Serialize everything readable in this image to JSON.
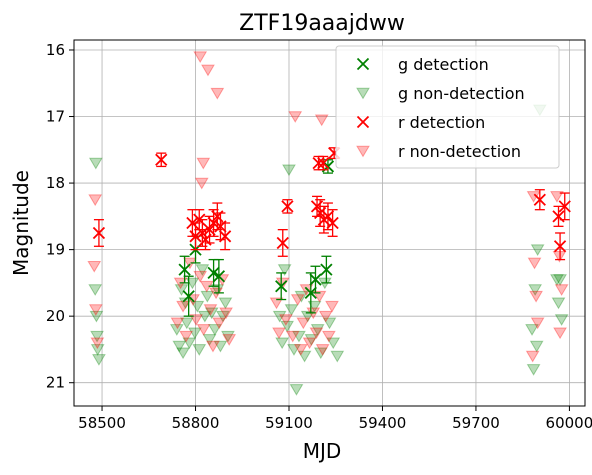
{
  "chart_data": {
    "type": "scatter",
    "title": "ZTF19aaajdww",
    "xlabel": "MJD",
    "ylabel": "Magnitude",
    "xlim": [
      58410,
      60050
    ],
    "ylim": [
      21.35,
      15.85
    ],
    "y_inverted": true,
    "grid": true,
    "legend_position": "top-right",
    "xticks": [
      58500,
      58800,
      59100,
      59400,
      59700,
      60000
    ],
    "yticks": [
      16,
      17,
      18,
      19,
      20,
      21
    ],
    "colors": {
      "g": "#008000",
      "r": "#ff0000"
    },
    "series": [
      {
        "name": "g detection",
        "marker": "x",
        "color": "#008000",
        "points": [
          {
            "x": 58765,
            "y": 19.3,
            "err": 0.2
          },
          {
            "x": 58778,
            "y": 19.7,
            "err": 0.3
          },
          {
            "x": 58800,
            "y": 19.0,
            "err": 0.2
          },
          {
            "x": 58858,
            "y": 19.35,
            "err": 0.2
          },
          {
            "x": 58875,
            "y": 19.4,
            "err": 0.25
          },
          {
            "x": 59075,
            "y": 19.55,
            "err": 0.2
          },
          {
            "x": 59170,
            "y": 19.65,
            "err": 0.3
          },
          {
            "x": 59185,
            "y": 19.45,
            "err": 0.2
          },
          {
            "x": 59220,
            "y": 19.3,
            "err": 0.2
          },
          {
            "x": 59225,
            "y": 17.75,
            "err": 0.1
          }
        ]
      },
      {
        "name": "g non-detection",
        "marker": "triangle-down",
        "color": "#008000",
        "points": [
          {
            "x": 58480,
            "y": 17.7
          },
          {
            "x": 58478,
            "y": 19.6
          },
          {
            "x": 58482,
            "y": 20.0
          },
          {
            "x": 58484,
            "y": 20.3
          },
          {
            "x": 58486,
            "y": 20.5
          },
          {
            "x": 58490,
            "y": 20.65
          },
          {
            "x": 58740,
            "y": 20.2
          },
          {
            "x": 58748,
            "y": 20.45
          },
          {
            "x": 58755,
            "y": 19.6
          },
          {
            "x": 58760,
            "y": 20.55
          },
          {
            "x": 58768,
            "y": 19.8
          },
          {
            "x": 58772,
            "y": 20.1
          },
          {
            "x": 58780,
            "y": 20.4
          },
          {
            "x": 58790,
            "y": 19.5
          },
          {
            "x": 58798,
            "y": 20.25
          },
          {
            "x": 58806,
            "y": 19.85
          },
          {
            "x": 58812,
            "y": 20.5
          },
          {
            "x": 58822,
            "y": 19.3
          },
          {
            "x": 58830,
            "y": 20.0
          },
          {
            "x": 58838,
            "y": 19.7
          },
          {
            "x": 58845,
            "y": 20.35
          },
          {
            "x": 58852,
            "y": 19.95
          },
          {
            "x": 58862,
            "y": 20.2
          },
          {
            "x": 58870,
            "y": 19.6
          },
          {
            "x": 58880,
            "y": 20.45
          },
          {
            "x": 58888,
            "y": 20.0
          },
          {
            "x": 58896,
            "y": 19.8
          },
          {
            "x": 58904,
            "y": 20.3
          },
          {
            "x": 59070,
            "y": 20.0
          },
          {
            "x": 59078,
            "y": 20.4
          },
          {
            "x": 59086,
            "y": 19.3
          },
          {
            "x": 59094,
            "y": 20.15
          },
          {
            "x": 59100,
            "y": 17.8
          },
          {
            "x": 59108,
            "y": 19.9
          },
          {
            "x": 59116,
            "y": 20.5
          },
          {
            "x": 59124,
            "y": 21.1
          },
          {
            "x": 59132,
            "y": 20.3
          },
          {
            "x": 59140,
            "y": 19.7
          },
          {
            "x": 59150,
            "y": 20.6
          },
          {
            "x": 59160,
            "y": 20.0
          },
          {
            "x": 59172,
            "y": 20.35
          },
          {
            "x": 59182,
            "y": 19.85
          },
          {
            "x": 59192,
            "y": 20.2
          },
          {
            "x": 59202,
            "y": 20.55
          },
          {
            "x": 59215,
            "y": 19.5
          },
          {
            "x": 59230,
            "y": 20.1
          },
          {
            "x": 59242,
            "y": 20.4
          },
          {
            "x": 59255,
            "y": 20.6
          },
          {
            "x": 59880,
            "y": 20.2
          },
          {
            "x": 59885,
            "y": 20.8
          },
          {
            "x": 59890,
            "y": 19.6
          },
          {
            "x": 59895,
            "y": 20.45
          },
          {
            "x": 59898,
            "y": 19.0
          },
          {
            "x": 59905,
            "y": 16.9
          },
          {
            "x": 59960,
            "y": 19.45
          },
          {
            "x": 59965,
            "y": 19.8
          },
          {
            "x": 59970,
            "y": 19.45
          },
          {
            "x": 59975,
            "y": 20.05
          }
        ]
      },
      {
        "name": "r detection",
        "marker": "x",
        "color": "#ff0000",
        "points": [
          {
            "x": 58490,
            "y": 18.75,
            "err": 0.2
          },
          {
            "x": 58690,
            "y": 17.65,
            "err": 0.1
          },
          {
            "x": 58790,
            "y": 18.6,
            "err": 0.2
          },
          {
            "x": 58800,
            "y": 18.8,
            "err": 0.2
          },
          {
            "x": 58812,
            "y": 18.55,
            "err": 0.15
          },
          {
            "x": 58822,
            "y": 18.75,
            "err": 0.2
          },
          {
            "x": 58832,
            "y": 18.85,
            "err": 0.15
          },
          {
            "x": 58845,
            "y": 18.7,
            "err": 0.2
          },
          {
            "x": 58858,
            "y": 18.6,
            "err": 0.2
          },
          {
            "x": 58870,
            "y": 18.5,
            "err": 0.2
          },
          {
            "x": 58880,
            "y": 18.65,
            "err": 0.2
          },
          {
            "x": 58895,
            "y": 18.8,
            "err": 0.2
          },
          {
            "x": 59080,
            "y": 18.9,
            "err": 0.2
          },
          {
            "x": 59095,
            "y": 18.35,
            "err": 0.1
          },
          {
            "x": 59190,
            "y": 18.35,
            "err": 0.15
          },
          {
            "x": 59200,
            "y": 18.45,
            "err": 0.2
          },
          {
            "x": 59212,
            "y": 18.55,
            "err": 0.2
          },
          {
            "x": 59225,
            "y": 18.5,
            "err": 0.2
          },
          {
            "x": 59240,
            "y": 18.6,
            "err": 0.2
          },
          {
            "x": 59195,
            "y": 17.7,
            "err": 0.1
          },
          {
            "x": 59210,
            "y": 17.7,
            "err": 0.1
          },
          {
            "x": 59245,
            "y": 17.55,
            "err": 0.08
          },
          {
            "x": 59905,
            "y": 18.25,
            "err": 0.15
          },
          {
            "x": 59965,
            "y": 18.5,
            "err": 0.15
          },
          {
            "x": 59970,
            "y": 18.95,
            "err": 0.2
          },
          {
            "x": 59985,
            "y": 18.35,
            "err": 0.2
          }
        ]
      },
      {
        "name": "r non-detection",
        "marker": "triangle-down",
        "color": "#ff0000",
        "points": [
          {
            "x": 58478,
            "y": 18.25
          },
          {
            "x": 58475,
            "y": 19.25
          },
          {
            "x": 58480,
            "y": 19.9
          },
          {
            "x": 58485,
            "y": 20.4
          },
          {
            "x": 58815,
            "y": 16.1
          },
          {
            "x": 58825,
            "y": 17.7
          },
          {
            "x": 58820,
            "y": 18.0
          },
          {
            "x": 58840,
            "y": 16.3
          },
          {
            "x": 58870,
            "y": 16.65
          },
          {
            "x": 58742,
            "y": 20.1
          },
          {
            "x": 58752,
            "y": 19.5
          },
          {
            "x": 58760,
            "y": 19.85
          },
          {
            "x": 58770,
            "y": 20.3
          },
          {
            "x": 58782,
            "y": 19.2
          },
          {
            "x": 58792,
            "y": 19.75
          },
          {
            "x": 58802,
            "y": 20.05
          },
          {
            "x": 58815,
            "y": 19.4
          },
          {
            "x": 58826,
            "y": 20.2
          },
          {
            "x": 58836,
            "y": 19.55
          },
          {
            "x": 58848,
            "y": 19.9
          },
          {
            "x": 58856,
            "y": 20.45
          },
          {
            "x": 58866,
            "y": 19.65
          },
          {
            "x": 58876,
            "y": 20.1
          },
          {
            "x": 58886,
            "y": 19.45
          },
          {
            "x": 58898,
            "y": 19.95
          },
          {
            "x": 58908,
            "y": 20.35
          },
          {
            "x": 59060,
            "y": 19.8
          },
          {
            "x": 59068,
            "y": 20.25
          },
          {
            "x": 59080,
            "y": 19.5
          },
          {
            "x": 59090,
            "y": 20.05
          },
          {
            "x": 59112,
            "y": 20.3
          },
          {
            "x": 59120,
            "y": 17.0
          },
          {
            "x": 59128,
            "y": 19.75
          },
          {
            "x": 59138,
            "y": 20.5
          },
          {
            "x": 59146,
            "y": 20.1
          },
          {
            "x": 59156,
            "y": 19.6
          },
          {
            "x": 59166,
            "y": 20.4
          },
          {
            "x": 59178,
            "y": 19.95
          },
          {
            "x": 59188,
            "y": 20.25
          },
          {
            "x": 59198,
            "y": 19.7
          },
          {
            "x": 59208,
            "y": 20.5
          },
          {
            "x": 59218,
            "y": 20.0
          },
          {
            "x": 59228,
            "y": 20.3
          },
          {
            "x": 59238,
            "y": 19.85
          },
          {
            "x": 59205,
            "y": 17.05
          },
          {
            "x": 59885,
            "y": 18.2
          },
          {
            "x": 59888,
            "y": 19.2
          },
          {
            "x": 59893,
            "y": 19.7
          },
          {
            "x": 59898,
            "y": 20.1
          },
          {
            "x": 59882,
            "y": 20.6
          },
          {
            "x": 59960,
            "y": 18.2
          },
          {
            "x": 59968,
            "y": 19.1
          },
          {
            "x": 59975,
            "y": 19.6
          },
          {
            "x": 59970,
            "y": 20.25
          }
        ]
      }
    ]
  }
}
